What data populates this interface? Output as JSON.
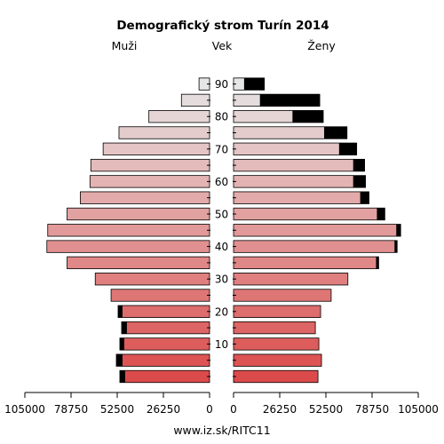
{
  "chart_data": {
    "type": "bar",
    "title": "Demografický strom Turín 2014",
    "left_header": "Muži",
    "center_header": "Vek",
    "right_header": "Ženy",
    "footer": "www.iz.sk/RITC11",
    "x_ticks": [
      105000,
      78750,
      52500,
      26250,
      0
    ],
    "x_tick_labels": [
      "105000",
      "78750",
      "52500",
      "26250",
      "0",
      "0",
      "26250",
      "52500",
      "78750",
      "105000"
    ],
    "xlim": [
      0,
      105000
    ],
    "age_ticks": [
      "10",
      "20",
      "30",
      "40",
      "50",
      "60",
      "70",
      "80",
      "90"
    ],
    "age_groups": [
      "0-4",
      "5-9",
      "10-14",
      "15-19",
      "20-24",
      "25-29",
      "30-34",
      "35-39",
      "40-44",
      "45-49",
      "50-54",
      "55-59",
      "60-64",
      "65-69",
      "70-74",
      "75-79",
      "80-84",
      "85-89",
      "90+"
    ],
    "series": [
      {
        "name": "Muži",
        "total": [
          51000,
          53000,
          51000,
          50000,
          52000,
          56000,
          65000,
          81000,
          92500,
          92000,
          81000,
          73500,
          68000,
          67500,
          60500,
          51500,
          34500,
          16000,
          6000
        ],
        "excess": [
          3000,
          3500,
          2500,
          3000,
          2500,
          0,
          0,
          0,
          0,
          0,
          0,
          0,
          0,
          0,
          0,
          0,
          0,
          0,
          0
        ]
      },
      {
        "name": "Ženy",
        "total": [
          48000,
          50000,
          48500,
          46500,
          49500,
          55500,
          65000,
          82500,
          93000,
          95000,
          86000,
          77000,
          75000,
          74500,
          70000,
          64500,
          51000,
          49000,
          17500
        ],
        "excess": [
          0,
          0,
          0,
          0,
          0,
          0,
          0,
          1500,
          1500,
          2500,
          4500,
          5000,
          7000,
          6500,
          10000,
          13000,
          17500,
          34000,
          11500
        ]
      }
    ],
    "colors": {
      "excess": "#000000",
      "bottom": "#dc4b4b",
      "top": "#e6e6e6"
    }
  }
}
